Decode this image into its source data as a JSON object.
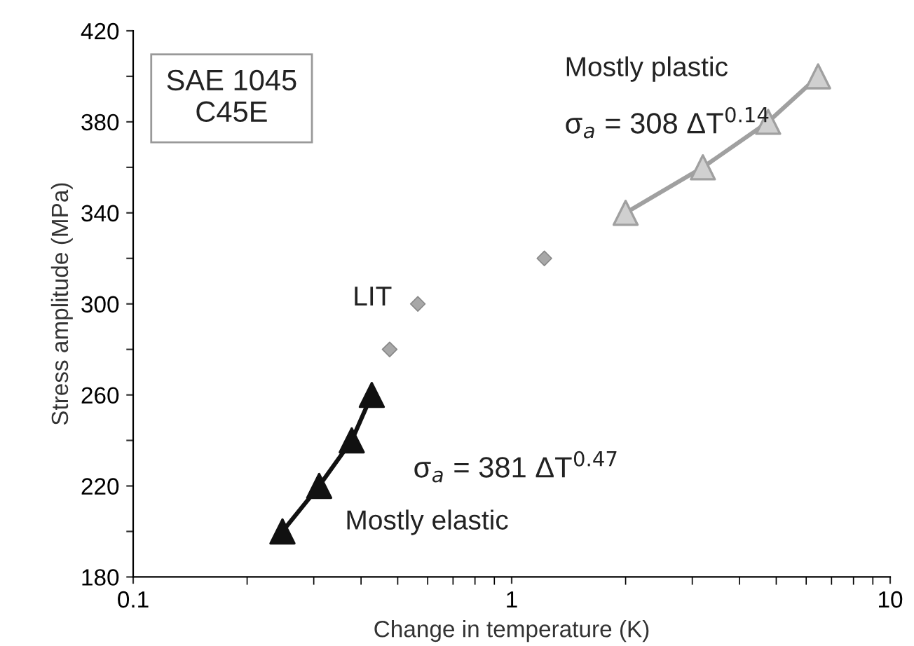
{
  "chart_data": {
    "type": "line",
    "xlabel": "Change in temperature (K)",
    "ylabel": "Stress amplitude (MPa)",
    "log": "x",
    "grid": false,
    "legend": false,
    "xlim": [
      0.1,
      10
    ],
    "xticks": [
      0.1,
      1,
      10
    ],
    "ylim": [
      180,
      420
    ],
    "yticks": [
      180,
      {
        "value": 200,
        "label": null
      },
      220,
      {
        "value": 240,
        "label": null
      },
      260,
      {
        "value": 280,
        "label": null
      },
      300,
      {
        "value": 320,
        "label": null
      },
      340,
      {
        "value": 360,
        "label": null
      },
      380,
      {
        "value": 400,
        "label": null
      },
      420
    ],
    "series": [
      {
        "marker": "triangle",
        "color": "#111111",
        "x": [
          0.248,
          0.31,
          0.378,
          0.427
        ],
        "values": [
          200,
          220,
          240,
          260
        ]
      },
      {
        "type": "scatter",
        "marker": "diamond",
        "color": "#a8a8a8",
        "x": [
          0.476,
          0.565,
          1.22
        ],
        "values": [
          280,
          300,
          320
        ]
      },
      {
        "marker": "triangle",
        "color": "#a0a0a0",
        "x": [
          2.0,
          3.2,
          4.76,
          6.45
        ],
        "values": [
          340,
          360,
          380,
          400
        ]
      }
    ],
    "annotations": [
      "SAE 1045\nC45E",
      "Mostly plastic",
      "σ$_{a}$ = 308 ΔT$^{0.14}$",
      "LIT",
      "σ$_{a}$ = 381 ΔT$^{0.47}$",
      "Mostly elastic"
    ]
  }
}
